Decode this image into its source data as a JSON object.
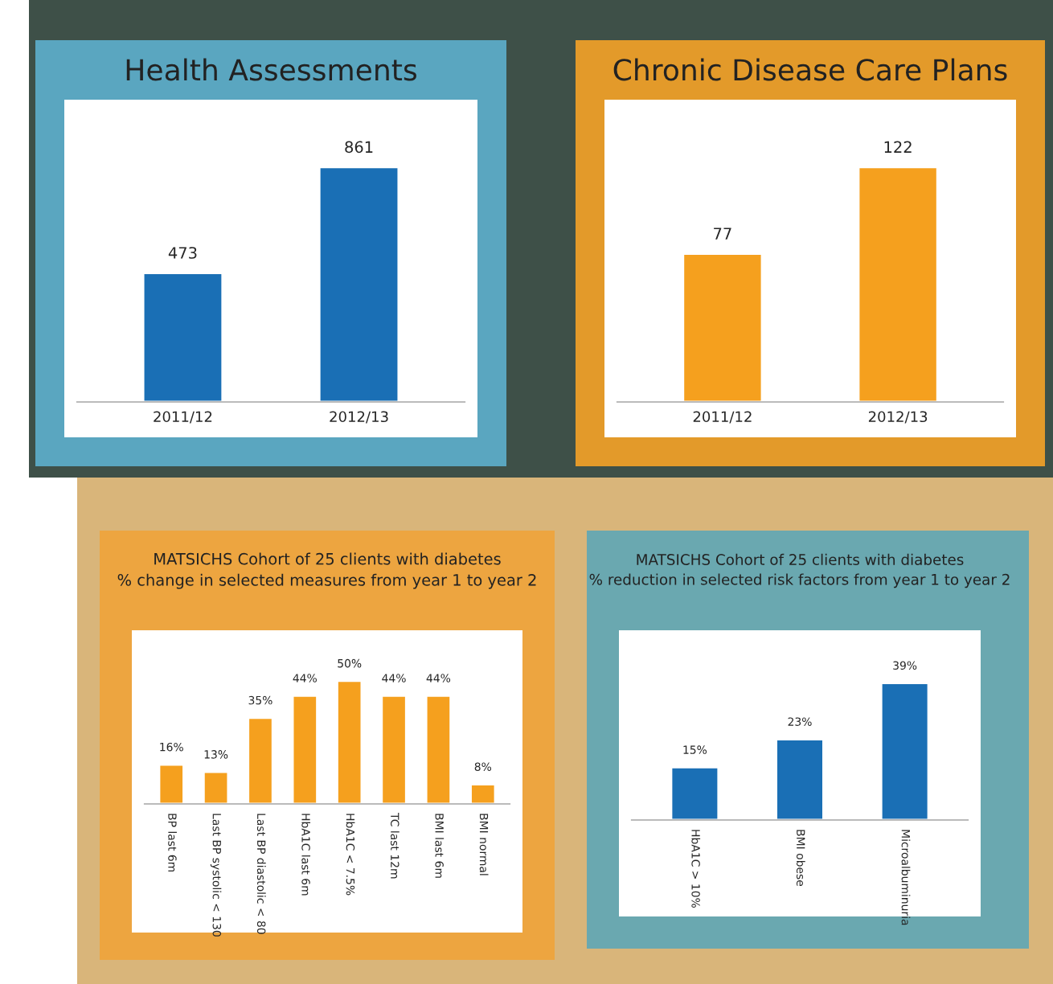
{
  "chart_data": [
    {
      "type": "bar",
      "title": "Health Assessments",
      "categories": [
        "2011/12",
        "2012/13"
      ],
      "values": [
        473,
        861
      ],
      "color": "#1a6fb5",
      "data_labels": true
    },
    {
      "type": "bar",
      "title": "Chronic Disease Care Plans",
      "categories": [
        "2011/12",
        "2012/13"
      ],
      "values": [
        77,
        122
      ],
      "color": "#f5a01e",
      "data_labels": true
    },
    {
      "type": "bar",
      "title": "MATSICHS Cohort of 25 clients with diabetes\n% change in selected measures from year 1 to year 2",
      "categories": [
        "BP last 6m",
        "Last BP systolic < 130",
        "Last BP diastolic < 80",
        "HbA1C last 6m",
        "HbA1C < 7.5%",
        "TC last 12m",
        "BMI last 6m",
        "BMI normal"
      ],
      "values": [
        16,
        13,
        35,
        44,
        50,
        44,
        44,
        8
      ],
      "value_labels": [
        "16%",
        "13%",
        "35%",
        "44%",
        "50%",
        "44%",
        "44%",
        "8%"
      ],
      "color": "#f5a01e"
    },
    {
      "type": "bar",
      "title": "MATSICHS Cohort of 25 clients with diabetes\n% reduction in selected risk factors from year 1 to year 2",
      "categories": [
        "HbA1C > 10%",
        "BMI obese",
        "Microalbuminuria"
      ],
      "values": [
        15,
        23,
        39
      ],
      "value_labels": [
        "15%",
        "23%",
        "39%"
      ],
      "color": "#1a6fb5"
    }
  ]
}
